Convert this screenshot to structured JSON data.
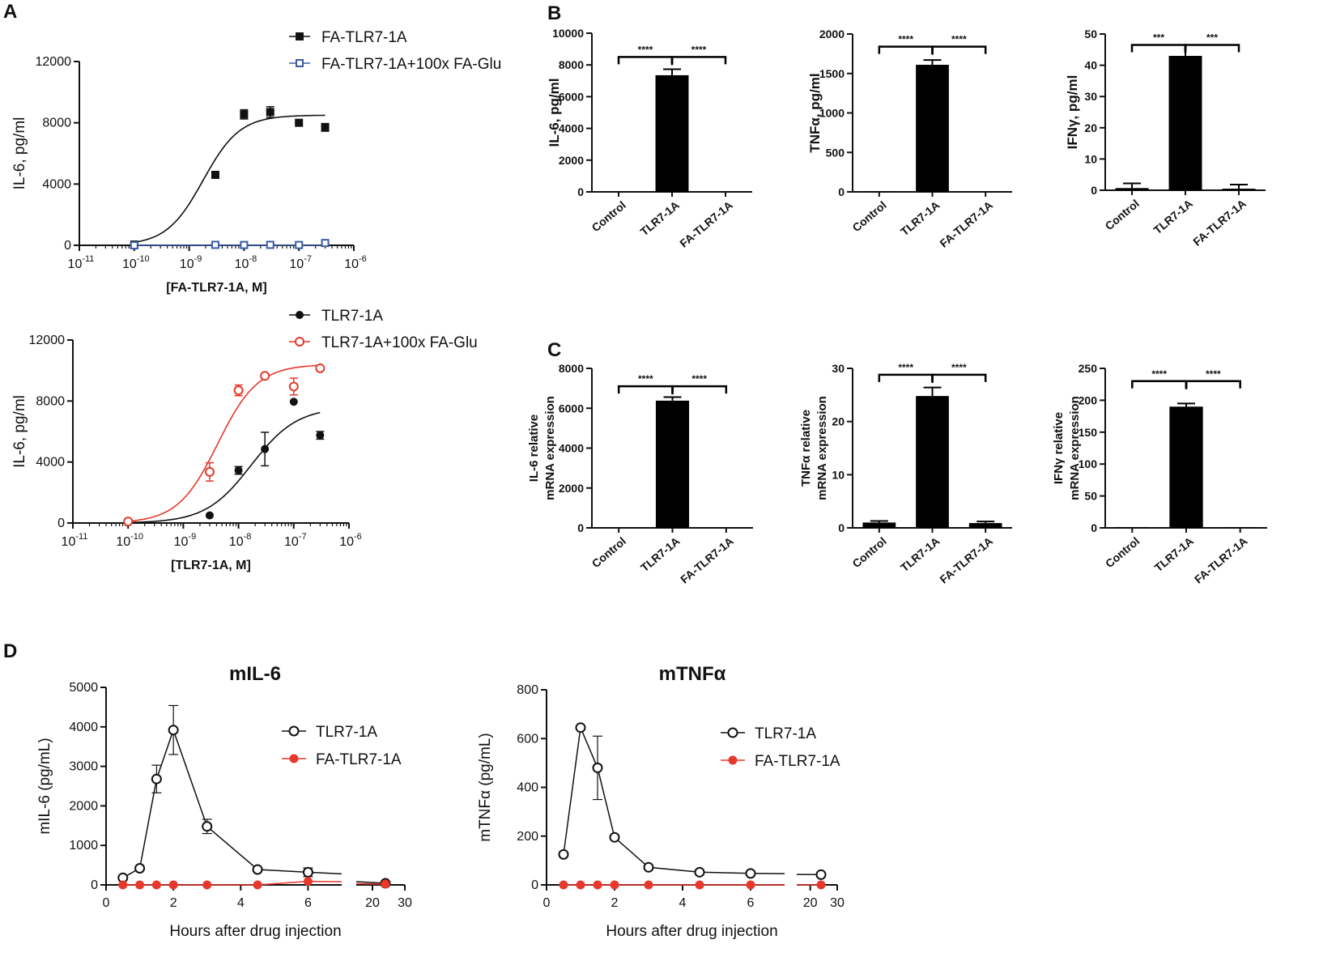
{
  "panel_letters": {
    "a": "A",
    "b": "B",
    "c": "C",
    "d": "D"
  },
  "chart_data": [
    {
      "id": "A1",
      "type": "scatter",
      "title": "",
      "xlabel": "[FA-TLR7-1A, M]",
      "ylabel": "IL-6, pg/ml",
      "xscale": "log",
      "xlim": [
        1e-11,
        1e-06
      ],
      "ylim": [
        0,
        12000
      ],
      "xticks": [
        {
          "base": "10",
          "exp": "-11"
        },
        {
          "base": "10",
          "exp": "-10"
        },
        {
          "base": "10",
          "exp": "-9"
        },
        {
          "base": "10",
          "exp": "-8"
        },
        {
          "base": "10",
          "exp": "-7"
        },
        {
          "base": "10",
          "exp": "-6"
        }
      ],
      "yticks": [
        "0",
        "4000",
        "8000",
        "12000"
      ],
      "legend_position": "top-right",
      "series": [
        {
          "name": "FA-TLR7-1A",
          "color": "#111111",
          "marker": "filled-square",
          "x": [
            1e-10,
            3e-09,
            1e-08,
            3e-08,
            1e-07,
            3e-07
          ],
          "y": [
            50,
            4600,
            8550,
            8700,
            8000,
            7700
          ],
          "err": [
            0,
            0,
            300,
            350,
            0,
            250
          ],
          "fit": {
            "bottom": 0,
            "top": 8500,
            "ec50": 1.8e-09,
            "hill": 1.3
          }
        },
        {
          "name": "FA-TLR7-1A+100x FA-Glu",
          "color": "#3b5ba5",
          "marker": "open-square",
          "x": [
            1e-10,
            3e-09,
            1e-08,
            3e-08,
            1e-07,
            3e-07
          ],
          "y": [
            0,
            30,
            20,
            30,
            20,
            150
          ],
          "err": [
            0,
            0,
            0,
            0,
            0,
            0
          ],
          "fit": {
            "bottom": 0,
            "top": 0,
            "ec50": 1e-08,
            "hill": 1
          }
        }
      ]
    },
    {
      "id": "A2",
      "type": "scatter",
      "title": "",
      "xlabel": "[TLR7-1A, M]",
      "ylabel": "IL-6, pg/ml",
      "xscale": "log",
      "xlim": [
        1e-11,
        1e-06
      ],
      "ylim": [
        0,
        12000
      ],
      "xticks": [
        {
          "base": "10",
          "exp": "-11"
        },
        {
          "base": "10",
          "exp": "-10"
        },
        {
          "base": "10",
          "exp": "-9"
        },
        {
          "base": "10",
          "exp": "-8"
        },
        {
          "base": "10",
          "exp": "-7"
        },
        {
          "base": "10",
          "exp": "-6"
        }
      ],
      "yticks": [
        "0",
        "4000",
        "8000",
        "12000"
      ],
      "legend_position": "top-right",
      "series": [
        {
          "name": "TLR7-1A",
          "color": "#111111",
          "marker": "filled-circle",
          "x": [
            1e-10,
            3e-09,
            1e-08,
            3e-08,
            1e-07,
            3e-07
          ],
          "y": [
            50,
            500,
            3450,
            4850,
            7950,
            5750
          ],
          "err": [
            0,
            0,
            250,
            1100,
            0,
            250
          ],
          "fit": {
            "bottom": 0,
            "top": 7600,
            "ec50": 1.7e-08,
            "hill": 1.05
          }
        },
        {
          "name": "TLR7-1A+100x FA-Glu",
          "color": "#e8372c",
          "marker": "open-circle",
          "x": [
            1e-10,
            3e-09,
            1e-08,
            3e-08,
            1e-07,
            3e-07
          ],
          "y": [
            100,
            3350,
            8700,
            9650,
            8950,
            10150
          ],
          "err": [
            0,
            600,
            350,
            0,
            550,
            0
          ],
          "fit": {
            "bottom": 0,
            "top": 10400,
            "ec50": 4.2e-09,
            "hill": 1.2
          }
        }
      ]
    },
    {
      "id": "B1",
      "type": "bar",
      "ylabel": "IL-6, pg/ml",
      "categories": [
        "Control",
        "TLR7-1A",
        "FA-TLR7-1A"
      ],
      "values": [
        0,
        7350,
        0
      ],
      "err": [
        0,
        380,
        0
      ],
      "ylim": [
        0,
        10000
      ],
      "yticks": [
        "0",
        "2000",
        "4000",
        "6000",
        "8000",
        "10000"
      ],
      "significance": [
        {
          "from": 0,
          "to": 1,
          "label": "****"
        },
        {
          "from": 1,
          "to": 2,
          "label": "****"
        }
      ],
      "sig_y": 8500
    },
    {
      "id": "B2",
      "type": "bar",
      "ylabel": "TNFα, pg/ml",
      "categories": [
        "Control",
        "TLR7-1A",
        "FA-TLR7-1A"
      ],
      "values": [
        5,
        1610,
        0
      ],
      "err": [
        0,
        60,
        0
      ],
      "ylim": [
        0,
        2000
      ],
      "yticks": [
        "0",
        "500",
        "1000",
        "1500",
        "2000"
      ],
      "significance": [
        {
          "from": 0,
          "to": 1,
          "label": "****"
        },
        {
          "from": 1,
          "to": 2,
          "label": "****"
        }
      ],
      "sig_y": 1840
    },
    {
      "id": "B3",
      "type": "bar",
      "ylabel": "IFNγ, pg/ml",
      "categories": [
        "Control",
        "TLR7-1A",
        "FA-TLR7-1A"
      ],
      "values": [
        0.7,
        43,
        0.5
      ],
      "err": [
        1.5,
        3.5,
        1.3
      ],
      "ylim": [
        0,
        50
      ],
      "yticks": [
        "0",
        "10",
        "20",
        "30",
        "40",
        "50"
      ],
      "significance": [
        {
          "from": 0,
          "to": 1,
          "label": "***"
        },
        {
          "from": 1,
          "to": 2,
          "label": "***"
        }
      ],
      "sig_y": 46.5
    },
    {
      "id": "C1",
      "type": "bar",
      "ylabel": [
        "IL-6 relative",
        "mRNA expression"
      ],
      "categories": [
        "Control",
        "TLR7-1A",
        "FA-TLR7-1A"
      ],
      "values": [
        0,
        6380,
        0
      ],
      "err": [
        0,
        180,
        0
      ],
      "ylim": [
        0,
        8000
      ],
      "yticks": [
        "0",
        "2000",
        "4000",
        "6000",
        "8000"
      ],
      "significance": [
        {
          "from": 0,
          "to": 1,
          "label": "****"
        },
        {
          "from": 1,
          "to": 2,
          "label": "****"
        }
      ],
      "sig_y": 7100
    },
    {
      "id": "C2",
      "type": "bar",
      "ylabel": [
        "TNFα relative",
        "mRNA expression"
      ],
      "categories": [
        "Control",
        "TLR7-1A",
        "FA-TLR7-1A"
      ],
      "values": [
        1,
        24.8,
        0.9
      ],
      "err": [
        0.3,
        1.6,
        0.3
      ],
      "ylim": [
        0,
        30
      ],
      "yticks": [
        "0",
        "10",
        "20",
        "30"
      ],
      "significance": [
        {
          "from": 0,
          "to": 1,
          "label": "****"
        },
        {
          "from": 1,
          "to": 2,
          "label": "****"
        }
      ],
      "sig_y": 28.8
    },
    {
      "id": "C3",
      "type": "bar",
      "ylabel": [
        "IFNγ relative",
        "mRNA expression"
      ],
      "categories": [
        "Control",
        "TLR7-1A",
        "FA-TLR7-1A"
      ],
      "values": [
        1,
        190,
        1
      ],
      "err": [
        0,
        5,
        0
      ],
      "ylim": [
        0,
        250
      ],
      "yticks": [
        "0",
        "50",
        "100",
        "150",
        "200",
        "250"
      ],
      "significance": [
        {
          "from": 0,
          "to": 1,
          "label": "****"
        },
        {
          "from": 1,
          "to": 2,
          "label": "****"
        }
      ],
      "sig_y": 230
    },
    {
      "id": "D1",
      "type": "line",
      "title": "mIL-6",
      "xlabel": "Hours after drug injection",
      "ylabel": "mIL-6 (pg/mL)",
      "ylim": [
        0,
        5000
      ],
      "yticks": [
        "0",
        "1000",
        "2000",
        "3000",
        "4000",
        "5000"
      ],
      "xsegments": [
        {
          "range": [
            0,
            7
          ],
          "ticks": [
            "0",
            "2",
            "4",
            "6"
          ]
        },
        {
          "range": [
            15,
            30
          ],
          "ticks": [
            "20",
            "30"
          ]
        }
      ],
      "legend_position": "right",
      "series": [
        {
          "name": "TLR7-1A",
          "color": "#111111",
          "marker": "open-circle",
          "x": [
            0.5,
            1,
            1.5,
            2,
            3,
            4.5,
            6,
            24
          ],
          "y": [
            180,
            420,
            2680,
            3920,
            1480,
            390,
            320,
            40
          ],
          "err": [
            0,
            0,
            350,
            620,
            180,
            0,
            110,
            0
          ]
        },
        {
          "name": "FA-TLR7-1A",
          "color": "#e8372c",
          "marker": "filled-circle",
          "x": [
            0.5,
            1,
            1.5,
            2,
            3,
            4.5,
            6,
            24
          ],
          "y": [
            0,
            0,
            0,
            0,
            0,
            0,
            90,
            20
          ],
          "err": [
            0,
            0,
            0,
            0,
            0,
            0,
            0,
            0
          ]
        }
      ]
    },
    {
      "id": "D2",
      "type": "line",
      "title": "mTNFα",
      "xlabel": "Hours after drug injection",
      "ylabel": "mTNFα (pg/mL)",
      "ylim": [
        0,
        800
      ],
      "yticks": [
        "0",
        "200",
        "400",
        "600",
        "800"
      ],
      "xsegments": [
        {
          "range": [
            0,
            7
          ],
          "ticks": [
            "0",
            "2",
            "4",
            "6"
          ]
        },
        {
          "range": [
            15,
            30
          ],
          "ticks": [
            "20",
            "30"
          ]
        }
      ],
      "legend_position": "right",
      "series": [
        {
          "name": "TLR7-1A",
          "color": "#111111",
          "marker": "open-circle",
          "x": [
            0.5,
            1,
            1.5,
            2,
            3,
            4.5,
            6,
            24
          ],
          "y": [
            125,
            645,
            480,
            195,
            72,
            52,
            47,
            42
          ],
          "err": [
            0,
            0,
            130,
            0,
            0,
            0,
            0,
            0
          ]
        },
        {
          "name": "FA-TLR7-1A",
          "color": "#e8372c",
          "marker": "filled-circle",
          "x": [
            0.5,
            1,
            1.5,
            2,
            3,
            4.5,
            6,
            24
          ],
          "y": [
            0,
            0,
            0,
            0,
            0,
            0,
            0,
            0
          ],
          "err": [
            0,
            0,
            0,
            0,
            0,
            0,
            0,
            0
          ]
        }
      ]
    }
  ]
}
